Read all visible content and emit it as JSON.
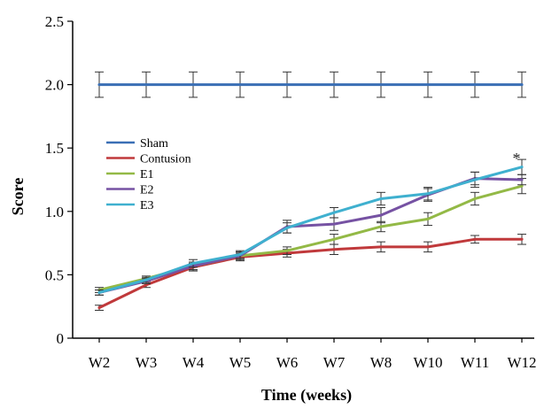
{
  "chart_data": {
    "type": "line",
    "xlabel": "Time (weeks)",
    "ylabel": "Score",
    "ylim": [
      0,
      2.5
    ],
    "yticks": [
      "0",
      "0.5",
      "1.0",
      "1.5",
      "2.0",
      "2.5"
    ],
    "yticks_values": [
      0,
      0.5,
      1.0,
      1.5,
      2.0,
      2.5
    ],
    "categories": [
      "W2",
      "W3",
      "W4",
      "W5",
      "W6",
      "W7",
      "W8",
      "W10",
      "W11",
      "W12"
    ],
    "legend_position": "left",
    "annotation": {
      "text": "*",
      "category": "W12",
      "value": 1.46
    },
    "series": [
      {
        "name": "Sham",
        "color": "#3a6fb5",
        "values": [
          2.0,
          2.0,
          2.0,
          2.0,
          2.0,
          2.0,
          2.0,
          2.0,
          2.0,
          2.0
        ],
        "errors": [
          0.1,
          0.1,
          0.1,
          0.1,
          0.1,
          0.1,
          0.1,
          0.1,
          0.1,
          0.1
        ]
      },
      {
        "name": "Contusion",
        "color": "#c0393b",
        "values": [
          0.24,
          0.42,
          0.56,
          0.64,
          0.67,
          0.7,
          0.72,
          0.72,
          0.78,
          0.78
        ],
        "errors": [
          0.02,
          0.02,
          0.03,
          0.03,
          0.03,
          0.04,
          0.04,
          0.04,
          0.03,
          0.04
        ]
      },
      {
        "name": "E1",
        "color": "#93b946",
        "values": [
          0.38,
          0.47,
          0.57,
          0.65,
          0.69,
          0.78,
          0.88,
          0.94,
          1.1,
          1.2
        ],
        "errors": [
          0.02,
          0.02,
          0.03,
          0.03,
          0.03,
          0.04,
          0.04,
          0.05,
          0.05,
          0.06
        ]
      },
      {
        "name": "E2",
        "color": "#7652a3",
        "values": [
          0.36,
          0.45,
          0.57,
          0.65,
          0.88,
          0.9,
          0.97,
          1.13,
          1.26,
          1.25
        ],
        "errors": [
          0.02,
          0.02,
          0.03,
          0.03,
          0.05,
          0.05,
          0.06,
          0.05,
          0.05,
          0.04
        ]
      },
      {
        "name": "E3",
        "color": "#3fb0cf",
        "values": [
          0.36,
          0.46,
          0.59,
          0.66,
          0.87,
          0.99,
          1.1,
          1.14,
          1.25,
          1.35
        ],
        "errors": [
          0.02,
          0.02,
          0.03,
          0.03,
          0.04,
          0.04,
          0.05,
          0.05,
          0.06,
          0.06
        ]
      }
    ]
  }
}
